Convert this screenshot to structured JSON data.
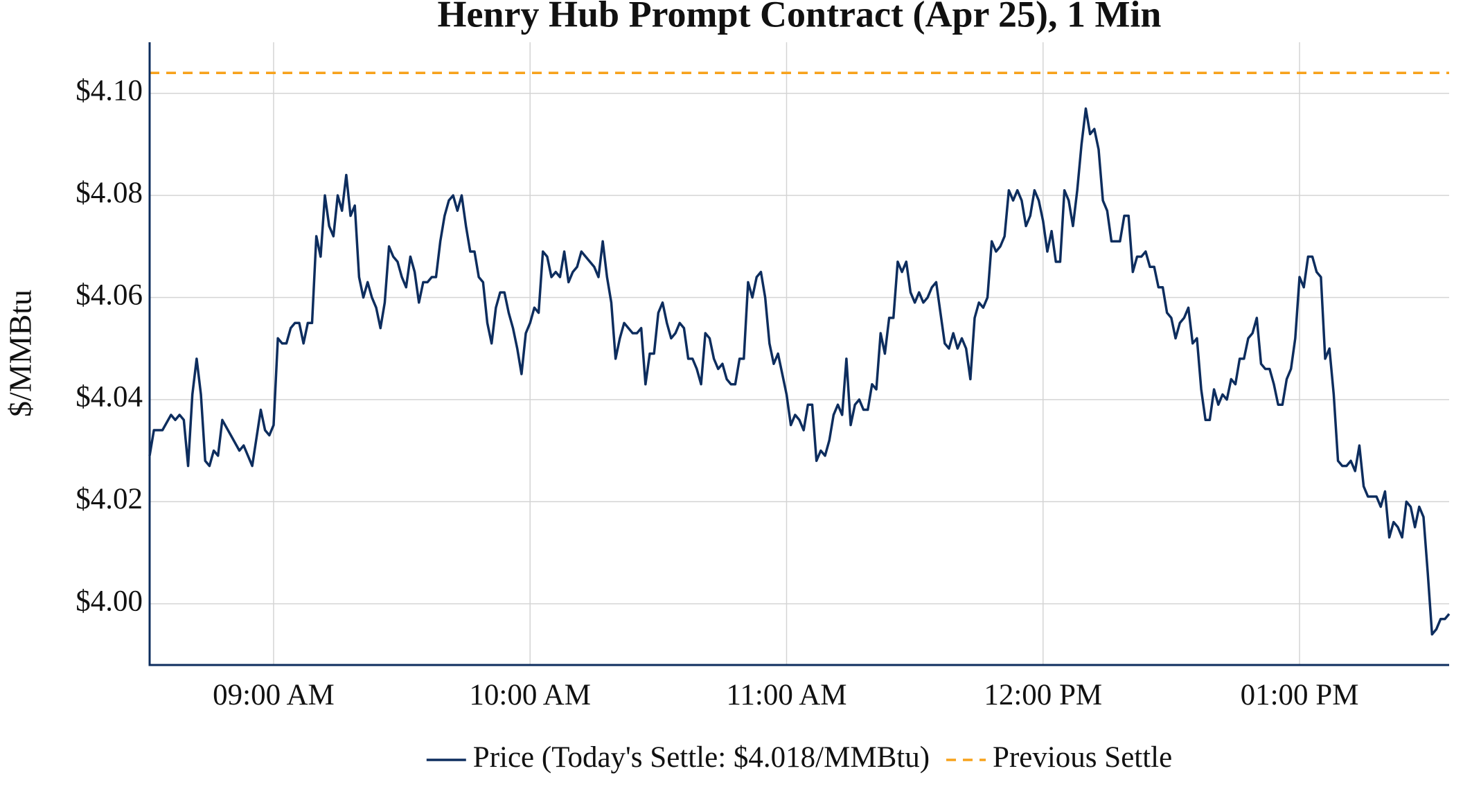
{
  "chart_data": {
    "type": "line",
    "title": "Henry Hub Prompt Contract (Apr 25), 1 Min",
    "y_label": "$/MMBtu",
    "x": [
      "08:31",
      "08:32",
      "08:34",
      "08:36",
      "08:37",
      "08:38",
      "08:39",
      "08:40",
      "08:41",
      "08:42",
      "08:43",
      "08:44",
      "08:45",
      "08:46",
      "08:47",
      "08:48",
      "08:50",
      "08:52",
      "08:53",
      "08:54",
      "08:55",
      "08:57",
      "08:58",
      "08:59",
      "09:00",
      "09:01",
      "09:02",
      "09:03",
      "09:04",
      "09:05",
      "09:06",
      "09:07",
      "09:08",
      "09:09",
      "09:10",
      "09:11",
      "09:12",
      "09:13",
      "09:14",
      "09:15",
      "09:16",
      "09:17",
      "09:18",
      "09:19",
      "09:20",
      "09:21",
      "09:22",
      "09:23",
      "09:24",
      "09:25",
      "09:26",
      "09:27",
      "09:28",
      "09:29",
      "09:30",
      "09:31",
      "09:32",
      "09:33",
      "09:34",
      "09:35",
      "09:36",
      "09:37",
      "09:38",
      "09:39",
      "09:40",
      "09:41",
      "09:42",
      "09:43",
      "09:44",
      "09:45",
      "09:46",
      "09:47",
      "09:48",
      "09:49",
      "09:50",
      "09:51",
      "09:52",
      "09:53",
      "09:54",
      "09:55",
      "09:56",
      "09:57",
      "09:58",
      "09:59",
      "10:00",
      "10:01",
      "10:02",
      "10:03",
      "10:04",
      "10:05",
      "10:06",
      "10:07",
      "10:08",
      "10:09",
      "10:10",
      "10:11",
      "10:12",
      "10:13",
      "10:14",
      "10:15",
      "10:16",
      "10:17",
      "10:18",
      "10:19",
      "10:20",
      "10:21",
      "10:22",
      "10:23",
      "10:24",
      "10:25",
      "10:26",
      "10:27",
      "10:28",
      "10:29",
      "10:30",
      "10:31",
      "10:32",
      "10:33",
      "10:34",
      "10:35",
      "10:36",
      "10:37",
      "10:38",
      "10:39",
      "10:40",
      "10:41",
      "10:42",
      "10:43",
      "10:44",
      "10:45",
      "10:46",
      "10:47",
      "10:48",
      "10:49",
      "10:50",
      "10:51",
      "10:52",
      "10:53",
      "10:54",
      "10:55",
      "10:56",
      "10:57",
      "10:58",
      "10:59",
      "11:00",
      "11:01",
      "11:02",
      "11:03",
      "11:04",
      "11:05",
      "11:06",
      "11:07",
      "11:08",
      "11:09",
      "11:10",
      "11:11",
      "11:12",
      "11:13",
      "11:14",
      "11:15",
      "11:16",
      "11:17",
      "11:18",
      "11:19",
      "11:20",
      "11:21",
      "11:22",
      "11:23",
      "11:24",
      "11:25",
      "11:26",
      "11:27",
      "11:28",
      "11:29",
      "11:30",
      "11:31",
      "11:32",
      "11:33",
      "11:34",
      "11:35",
      "11:36",
      "11:37",
      "11:38",
      "11:39",
      "11:40",
      "11:41",
      "11:42",
      "11:43",
      "11:44",
      "11:45",
      "11:46",
      "11:47",
      "11:48",
      "11:49",
      "11:50",
      "11:51",
      "11:52",
      "11:53",
      "11:54",
      "11:55",
      "11:56",
      "11:57",
      "11:58",
      "11:59",
      "12:00",
      "12:01",
      "12:02",
      "12:03",
      "12:04",
      "12:05",
      "12:06",
      "12:07",
      "12:08",
      "12:09",
      "12:10",
      "12:11",
      "12:12",
      "12:13",
      "12:14",
      "12:15",
      "12:16",
      "12:17",
      "12:18",
      "12:19",
      "12:20",
      "12:21",
      "12:22",
      "12:23",
      "12:24",
      "12:25",
      "12:26",
      "12:27",
      "12:28",
      "12:29",
      "12:30",
      "12:31",
      "12:32",
      "12:33",
      "12:34",
      "12:35",
      "12:36",
      "12:37",
      "12:38",
      "12:39",
      "12:40",
      "12:41",
      "12:42",
      "12:43",
      "12:44",
      "12:45",
      "12:46",
      "12:47",
      "12:48",
      "12:49",
      "12:50",
      "12:51",
      "12:52",
      "12:53",
      "12:54",
      "12:55",
      "12:56",
      "12:57",
      "12:58",
      "12:59",
      "13:00",
      "13:01",
      "13:02",
      "13:03",
      "13:04",
      "13:05",
      "13:06",
      "13:07",
      "13:08",
      "13:09",
      "13:10",
      "13:11",
      "13:12",
      "13:13",
      "13:14",
      "13:15",
      "13:16",
      "13:17",
      "13:18",
      "13:19",
      "13:20",
      "13:21",
      "13:22",
      "13:23",
      "13:24",
      "13:25",
      "13:26",
      "13:27",
      "13:28",
      "13:29",
      "13:30",
      "13:31",
      "13:32",
      "13:33",
      "13:34",
      "13:35"
    ],
    "series": [
      {
        "name": "Price (Today's Settle: $4.018/MMBtu)",
        "color": "#0d2d5e",
        "values": [
          4.029,
          4.034,
          4.034,
          4.037,
          4.036,
          4.037,
          4.036,
          4.027,
          4.041,
          4.048,
          4.041,
          4.028,
          4.027,
          4.03,
          4.029,
          4.036,
          4.033,
          4.03,
          4.031,
          4.029,
          4.027,
          4.038,
          4.034,
          4.033,
          4.035,
          4.052,
          4.051,
          4.051,
          4.054,
          4.055,
          4.055,
          4.051,
          4.055,
          4.055,
          4.072,
          4.068,
          4.08,
          4.074,
          4.072,
          4.08,
          4.077,
          4.084,
          4.076,
          4.078,
          4.064,
          4.06,
          4.063,
          4.06,
          4.058,
          4.054,
          4.059,
          4.07,
          4.068,
          4.067,
          4.064,
          4.062,
          4.068,
          4.065,
          4.059,
          4.063,
          4.063,
          4.064,
          4.064,
          4.071,
          4.076,
          4.079,
          4.08,
          4.077,
          4.08,
          4.074,
          4.069,
          4.069,
          4.064,
          4.063,
          4.055,
          4.051,
          4.058,
          4.061,
          4.061,
          4.057,
          4.054,
          4.05,
          4.045,
          4.053,
          4.055,
          4.058,
          4.057,
          4.069,
          4.068,
          4.064,
          4.065,
          4.064,
          4.069,
          4.063,
          4.065,
          4.066,
          4.069,
          4.068,
          4.067,
          4.066,
          4.064,
          4.071,
          4.064,
          4.059,
          4.048,
          4.052,
          4.055,
          4.054,
          4.053,
          4.053,
          4.054,
          4.043,
          4.049,
          4.049,
          4.057,
          4.059,
          4.055,
          4.052,
          4.053,
          4.055,
          4.054,
          4.048,
          4.048,
          4.046,
          4.043,
          4.053,
          4.052,
          4.048,
          4.046,
          4.047,
          4.044,
          4.043,
          4.043,
          4.048,
          4.048,
          4.063,
          4.06,
          4.064,
          4.065,
          4.06,
          4.051,
          4.047,
          4.049,
          4.045,
          4.041,
          4.035,
          4.037,
          4.036,
          4.034,
          4.039,
          4.039,
          4.028,
          4.03,
          4.029,
          4.032,
          4.037,
          4.039,
          4.037,
          4.048,
          4.035,
          4.039,
          4.04,
          4.038,
          4.038,
          4.043,
          4.042,
          4.053,
          4.049,
          4.056,
          4.056,
          4.067,
          4.065,
          4.067,
          4.061,
          4.059,
          4.061,
          4.059,
          4.06,
          4.062,
          4.063,
          4.057,
          4.051,
          4.05,
          4.053,
          4.05,
          4.052,
          4.05,
          4.044,
          4.056,
          4.059,
          4.058,
          4.06,
          4.071,
          4.069,
          4.07,
          4.072,
          4.081,
          4.079,
          4.081,
          4.079,
          4.074,
          4.076,
          4.081,
          4.079,
          4.075,
          4.069,
          4.073,
          4.067,
          4.067,
          4.081,
          4.079,
          4.074,
          4.081,
          4.09,
          4.097,
          4.092,
          4.093,
          4.089,
          4.079,
          4.077,
          4.071,
          4.071,
          4.071,
          4.076,
          4.076,
          4.065,
          4.068,
          4.068,
          4.069,
          4.066,
          4.066,
          4.062,
          4.062,
          4.057,
          4.056,
          4.052,
          4.055,
          4.056,
          4.058,
          4.051,
          4.052,
          4.042,
          4.036,
          4.036,
          4.042,
          4.039,
          4.041,
          4.04,
          4.044,
          4.043,
          4.048,
          4.048,
          4.052,
          4.053,
          4.056,
          4.047,
          4.046,
          4.046,
          4.043,
          4.039,
          4.039,
          4.044,
          4.046,
          4.052,
          4.064,
          4.062,
          4.068,
          4.068,
          4.065,
          4.064,
          4.048,
          4.05,
          4.041,
          4.028,
          4.027,
          4.027,
          4.028,
          4.026,
          4.031,
          4.023,
          4.021,
          4.021,
          4.021,
          4.019,
          4.022,
          4.013,
          4.016,
          4.015,
          4.013,
          4.02,
          4.019,
          4.015,
          4.019,
          4.017,
          4.006,
          3.994,
          3.995,
          3.997,
          3.997,
          3.998
        ]
      }
    ],
    "reference_lines": [
      {
        "name": "Previous Settle",
        "value": 4.104,
        "color": "#f7a21b"
      }
    ],
    "xlim": [
      "08:31",
      "13:35"
    ],
    "xticks": [
      {
        "value": "09:00",
        "label": "09:00 AM"
      },
      {
        "value": "10:00",
        "label": "10:00 AM"
      },
      {
        "value": "11:00",
        "label": "11:00 AM"
      },
      {
        "value": "12:00",
        "label": "12:00 PM"
      },
      {
        "value": "13:00",
        "label": "01:00 PM"
      }
    ],
    "ylim": [
      3.988,
      4.11
    ],
    "yticks": [
      {
        "value": 4.0,
        "label": "$4.00"
      },
      {
        "value": 4.02,
        "label": "$4.02"
      },
      {
        "value": 4.04,
        "label": "$4.04"
      },
      {
        "value": 4.06,
        "label": "$4.06"
      },
      {
        "value": 4.08,
        "label": "$4.08"
      },
      {
        "value": 4.1,
        "label": "$4.10"
      }
    ],
    "grid": true,
    "legend": "bottom"
  }
}
